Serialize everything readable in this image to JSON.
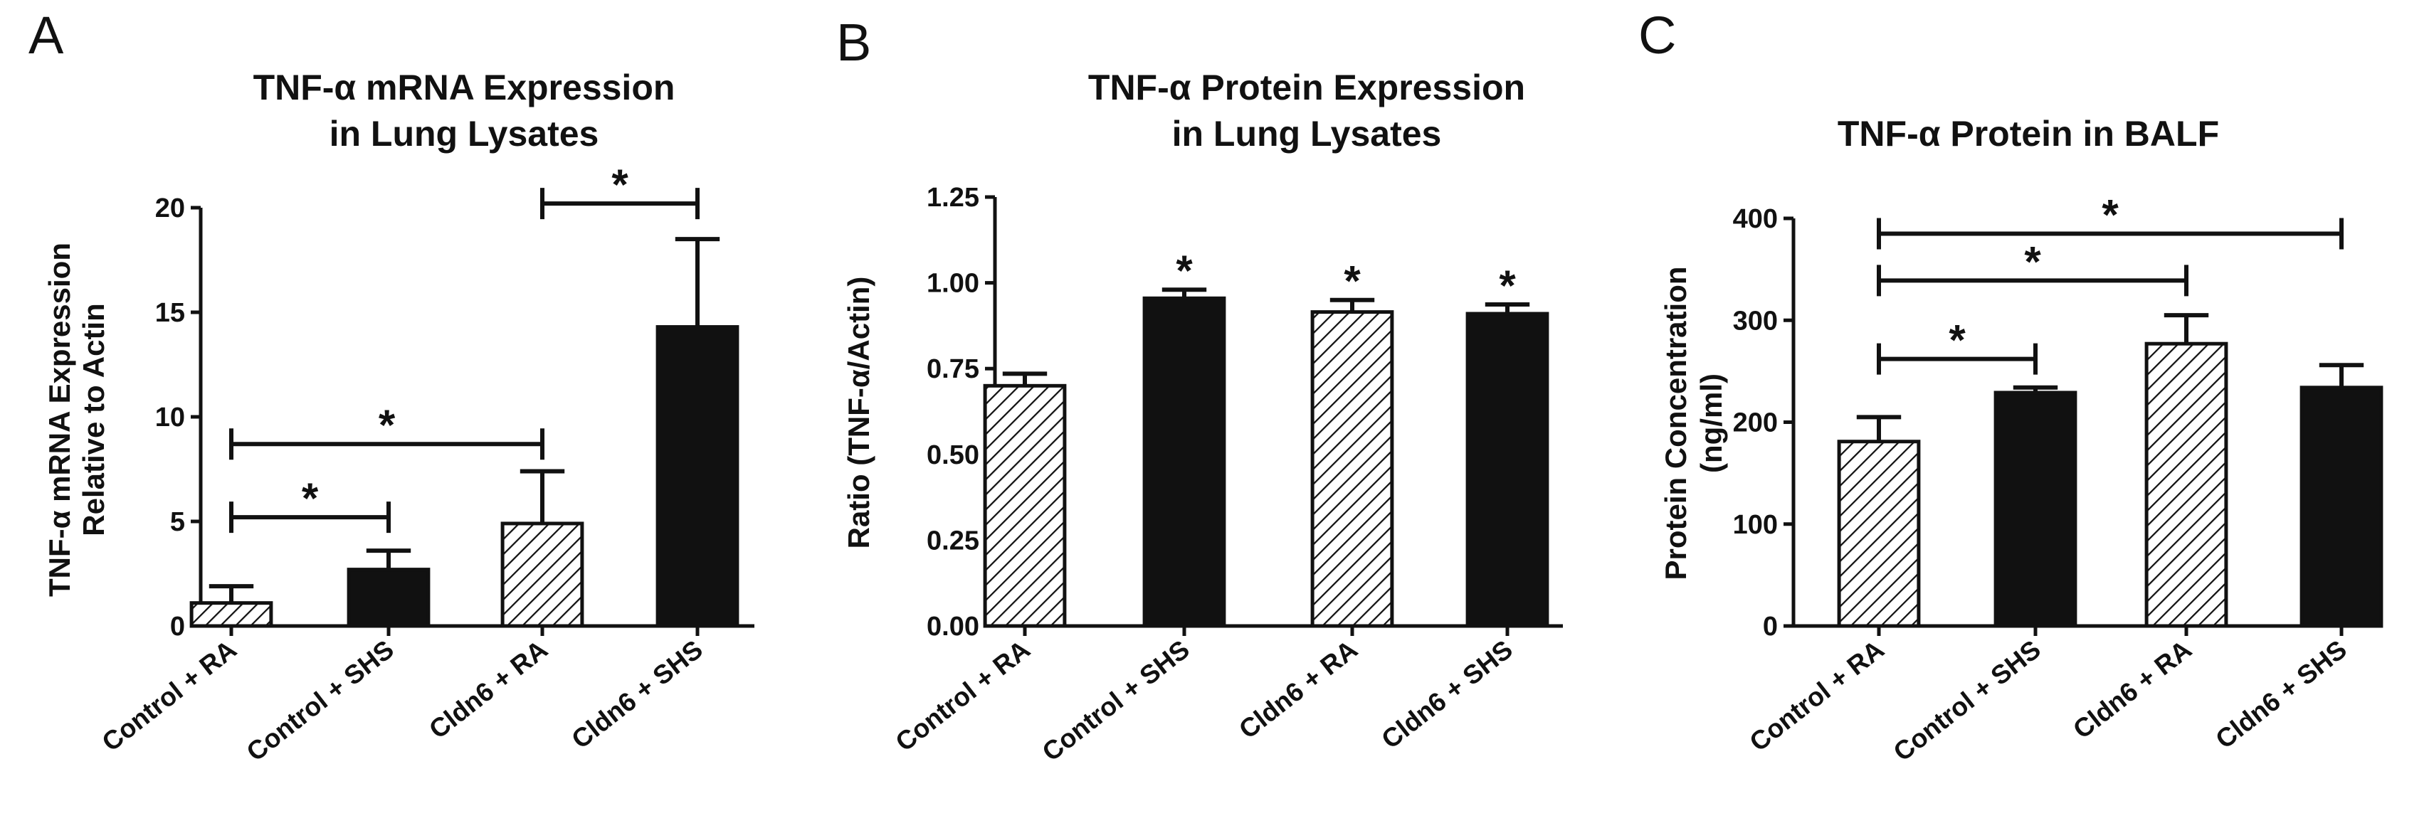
{
  "chart_data": [
    {
      "panel": "A",
      "type": "bar",
      "title": [
        "TNF-α mRNA Expression",
        "in Lung Lysates"
      ],
      "ylabel": [
        "TNF-α mRNA Expression",
        "Relative to Actin"
      ],
      "xlabel": "",
      "categories": [
        "Control + RA",
        "Control + SHS",
        "Cldn6 + RA",
        "Cldn6 + SHS"
      ],
      "values": [
        1.1,
        2.7,
        4.9,
        14.3
      ],
      "errors": [
        0.8,
        0.9,
        2.5,
        4.2
      ],
      "fills": [
        "hatched",
        "solid",
        "hatched",
        "solid"
      ],
      "ylim": [
        0,
        20
      ],
      "yticks": [
        0,
        5,
        10,
        15,
        20
      ],
      "ytick_labels": [
        "0",
        "5",
        "10",
        "15",
        "20"
      ],
      "annotations": [
        {
          "type": "bracket",
          "from": 0,
          "to": 1,
          "level": 5.2,
          "label": "*"
        },
        {
          "type": "bracket",
          "from": 0,
          "to": 2,
          "level": 8.7,
          "label": "*"
        },
        {
          "type": "bracket",
          "from": 2,
          "to": 3,
          "level": 20.2,
          "label": "*"
        }
      ]
    },
    {
      "panel": "B",
      "type": "bar",
      "title": [
        "TNF-α Protein Expression",
        "in Lung Lysates"
      ],
      "ylabel": [
        "Ratio (TNF-α/Actin)"
      ],
      "xlabel": "",
      "categories": [
        "Control + RA",
        "Control + SHS",
        "Cldn6 + RA",
        "Cldn6 + SHS"
      ],
      "values": [
        0.7,
        0.955,
        0.915,
        0.91
      ],
      "errors": [
        0.035,
        0.025,
        0.035,
        0.027
      ],
      "fills": [
        "hatched",
        "solid",
        "hatched",
        "solid"
      ],
      "ylim": [
        0,
        1.25
      ],
      "yticks": [
        0,
        0.25,
        0.5,
        0.75,
        1.0,
        1.25
      ],
      "ytick_labels": [
        "0.00",
        "0.25",
        "0.50",
        "0.75",
        "1.00",
        "1.25"
      ],
      "annotations": [
        {
          "type": "star",
          "bar": 1,
          "label": "*"
        },
        {
          "type": "star",
          "bar": 2,
          "label": "*"
        },
        {
          "type": "star",
          "bar": 3,
          "label": "*"
        }
      ]
    },
    {
      "panel": "C",
      "type": "bar",
      "title": [
        "TNF-α Protein in BALF"
      ],
      "ylabel": [
        "Protein Concentration",
        "(ng/ml)"
      ],
      "xlabel": "",
      "categories": [
        "Control + RA",
        "Control + SHS",
        "Cldn6 + RA",
        "Cldn6 + SHS"
      ],
      "values": [
        181,
        229,
        277,
        234
      ],
      "errors": [
        24,
        5,
        28,
        22
      ],
      "fills": [
        "hatched",
        "solid",
        "hatched",
        "solid"
      ],
      "ylim": [
        0,
        400
      ],
      "yticks": [
        0,
        100,
        200,
        300,
        400
      ],
      "ytick_labels": [
        "0",
        "100",
        "200",
        "300",
        "400"
      ],
      "annotations": [
        {
          "type": "bracket",
          "from": 0,
          "to": 1,
          "level": 262,
          "label": "*"
        },
        {
          "type": "bracket",
          "from": 0,
          "to": 2,
          "level": 339,
          "label": "*"
        },
        {
          "type": "bracket",
          "from": 0,
          "to": 3,
          "level": 385,
          "label": "*"
        }
      ]
    }
  ]
}
